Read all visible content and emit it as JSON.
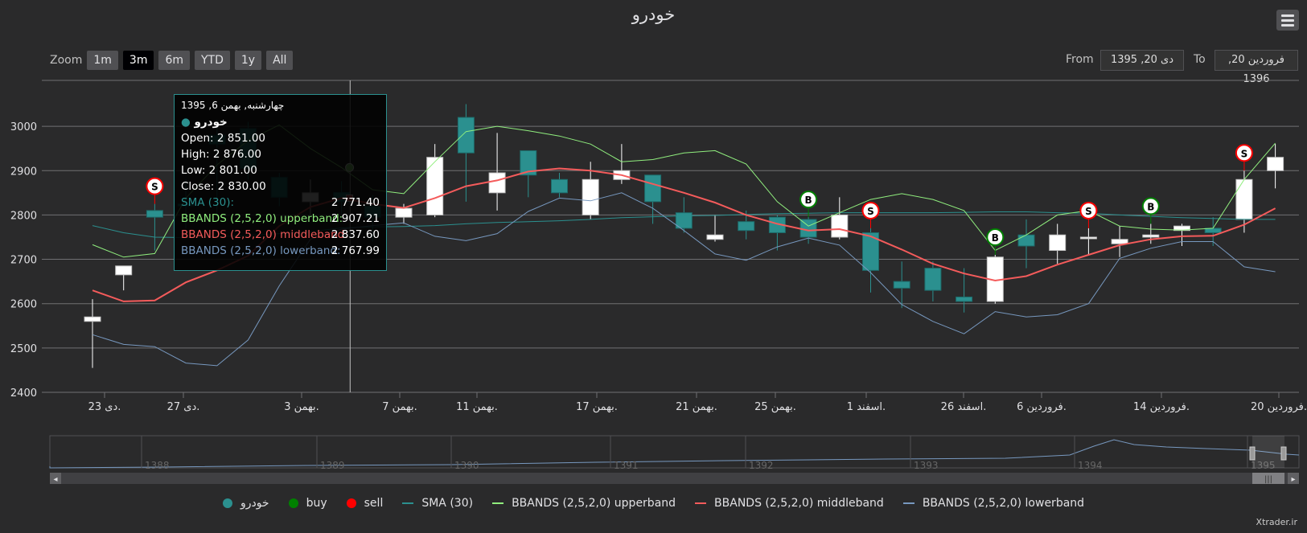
{
  "title": "خودرو",
  "credit": "Xtrader.ir",
  "zoom": {
    "label": "Zoom",
    "buttons": [
      "1m",
      "3m",
      "6m",
      "YTD",
      "1y",
      "All"
    ],
    "active": "3m"
  },
  "range": {
    "from_label": "From",
    "from_value": "دی 20, 1395",
    "to_label": "To",
    "to_value": "فروردین 20, 1396"
  },
  "colors": {
    "up": "#ffffff",
    "down": "#2b908f",
    "sma": "#2b908f",
    "upper": "#90ee7e",
    "middle": "#f45b5b",
    "lower": "#7798bf",
    "buy": "#008000",
    "sell": "#ff0000"
  },
  "icons": {
    "menu": "hamburger-menu-icon",
    "scroll_left": "arrow-left-icon",
    "scroll_right": "arrow-right-icon"
  },
  "chart_data": {
    "type": "candlestick",
    "title": "خودرو",
    "ylim": [
      2400,
      3100
    ],
    "yticks": [
      2400,
      2500,
      2600,
      2700,
      2800,
      2900,
      3000
    ],
    "grid": true,
    "legend_position": "bottom",
    "xtick_labels": [
      "دی 23.",
      "دی 27.",
      "بهمن 3.",
      "بهمن 7.",
      "بهمن 11.",
      "بهمن 17.",
      "بهمن 21.",
      "بهمن 25.",
      "اسفند 1.",
      "اسفند 26.",
      "فروردین 6.",
      "فروردین 14.",
      "فروردین 20."
    ],
    "candles": [
      {
        "open": 2560,
        "high": 2610,
        "low": 2455,
        "close": 2570
      },
      {
        "open": 2665,
        "high": 2685,
        "low": 2630,
        "close": 2685
      },
      {
        "open": 2810,
        "high": 2825,
        "low": 2720,
        "close": 2795
      },
      {
        "open": 2825,
        "high": 2880,
        "low": 2770,
        "close": 2820
      },
      {
        "open": 2980,
        "high": 3015,
        "low": 2800,
        "close": 2960
      },
      {
        "open": 2995,
        "high": 3010,
        "low": 2880,
        "close": 2905
      },
      {
        "open": 2885,
        "high": 2895,
        "low": 2820,
        "close": 2840
      },
      {
        "open": 2830,
        "high": 2880,
        "low": 2800,
        "close": 2850
      },
      {
        "open": 2851,
        "high": 2876,
        "low": 2801,
        "close": 2830
      },
      {
        "open": 2820,
        "high": 2845,
        "low": 2740,
        "close": 2795
      },
      {
        "open": 2795,
        "high": 2825,
        "low": 2780,
        "close": 2815
      },
      {
        "open": 2800,
        "high": 2960,
        "low": 2795,
        "close": 2930
      },
      {
        "open": 3020,
        "high": 3050,
        "low": 2830,
        "close": 2940
      },
      {
        "open": 2850,
        "high": 2985,
        "low": 2810,
        "close": 2895
      },
      {
        "open": 2945,
        "high": 2945,
        "low": 2840,
        "close": 2890
      },
      {
        "open": 2880,
        "high": 2895,
        "low": 2840,
        "close": 2850
      },
      {
        "open": 2800,
        "high": 2920,
        "low": 2790,
        "close": 2880
      },
      {
        "open": 2880,
        "high": 2960,
        "low": 2870,
        "close": 2900
      },
      {
        "open": 2890,
        "high": 2890,
        "low": 2780,
        "close": 2830
      },
      {
        "open": 2805,
        "high": 2840,
        "low": 2760,
        "close": 2770
      },
      {
        "open": 2745,
        "high": 2800,
        "low": 2740,
        "close": 2755
      },
      {
        "open": 2785,
        "high": 2810,
        "low": 2745,
        "close": 2765
      },
      {
        "open": 2795,
        "high": 2800,
        "low": 2720,
        "close": 2760
      },
      {
        "open": 2790,
        "high": 2795,
        "low": 2735,
        "close": 2750
      },
      {
        "open": 2750,
        "high": 2840,
        "low": 2745,
        "close": 2800
      },
      {
        "open": 2760,
        "high": 2770,
        "low": 2625,
        "close": 2675
      },
      {
        "open": 2650,
        "high": 2695,
        "low": 2590,
        "close": 2635
      },
      {
        "open": 2680,
        "high": 2695,
        "low": 2605,
        "close": 2630
      },
      {
        "open": 2615,
        "high": 2680,
        "low": 2580,
        "close": 2605
      },
      {
        "open": 2605,
        "high": 2710,
        "low": 2600,
        "close": 2705
      },
      {
        "open": 2755,
        "high": 2790,
        "low": 2680,
        "close": 2730
      },
      {
        "open": 2720,
        "high": 2780,
        "low": 2690,
        "close": 2755
      },
      {
        "open": 2750,
        "high": 2770,
        "low": 2710,
        "close": 2750
      },
      {
        "open": 2735,
        "high": 2775,
        "low": 2705,
        "close": 2745
      },
      {
        "open": 2750,
        "high": 2780,
        "low": 2735,
        "close": 2755
      },
      {
        "open": 2765,
        "high": 2780,
        "low": 2730,
        "close": 2775
      },
      {
        "open": 2770,
        "high": 2795,
        "low": 2730,
        "close": 2760
      },
      {
        "open": 2790,
        "high": 2900,
        "low": 2760,
        "close": 2880
      },
      {
        "open": 2900,
        "high": 2960,
        "low": 2860,
        "close": 2930
      }
    ],
    "series": [
      {
        "name": "SMA (30)",
        "values": [
          2776,
          2760,
          2750,
          2749,
          2751,
          2754,
          2758,
          2762,
          2771,
          2773,
          2774,
          2776,
          2780,
          2783,
          2785,
          2787,
          2790,
          2794,
          2796,
          2798,
          2799,
          2801,
          2803,
          2804,
          2805,
          2805,
          2805,
          2805,
          2806,
          2807,
          2807,
          2805,
          2804,
          2800,
          2797,
          2794,
          2792,
          2790,
          2790
        ]
      },
      {
        "name": "BBANDS (2,5,2,0) upperband",
        "values": [
          2733,
          2705,
          2713,
          2838,
          2913,
          2968,
          3003,
          2950,
          2907,
          2857,
          2848,
          2920,
          2988,
          3000,
          2990,
          2978,
          2960,
          2920,
          2925,
          2940,
          2945,
          2915,
          2830,
          2775,
          2805,
          2835,
          2848,
          2835,
          2810,
          2720,
          2755,
          2800,
          2810,
          2775,
          2768,
          2766,
          2770,
          2880,
          2962
        ]
      },
      {
        "name": "BBANDS (2,5,2,0) middleband",
        "values": [
          2630,
          2605,
          2607,
          2648,
          2675,
          2708,
          2775,
          2818,
          2838,
          2825,
          2816,
          2838,
          2865,
          2878,
          2898,
          2905,
          2900,
          2890,
          2870,
          2850,
          2828,
          2800,
          2780,
          2765,
          2768,
          2752,
          2722,
          2690,
          2668,
          2652,
          2662,
          2688,
          2710,
          2732,
          2745,
          2752,
          2753,
          2778,
          2815
        ]
      },
      {
        "name": "BBANDS (2,5,2,0) lowerband",
        "values": [
          2530,
          2508,
          2503,
          2466,
          2460,
          2518,
          2640,
          2745,
          2768,
          2776,
          2782,
          2752,
          2742,
          2758,
          2808,
          2838,
          2832,
          2850,
          2815,
          2765,
          2712,
          2698,
          2728,
          2748,
          2732,
          2670,
          2598,
          2560,
          2532,
          2582,
          2570,
          2575,
          2600,
          2702,
          2725,
          2740,
          2740,
          2683,
          2672
        ]
      },
      {
        "name": "buy",
        "markers": [
          {
            "index": 23,
            "label": "B"
          },
          {
            "index": 29,
            "label": "B"
          },
          {
            "index": 34,
            "label": "B"
          }
        ]
      },
      {
        "name": "sell",
        "markers": [
          {
            "index": 25,
            "label": "S"
          },
          {
            "index": 2,
            "label": "S"
          },
          {
            "index": 32,
            "label": "S"
          },
          {
            "index": 37,
            "label": "S"
          }
        ]
      }
    ],
    "navigator": {
      "year_labels": [
        "1388",
        "1389",
        "1390",
        "1391",
        "1392",
        "1393",
        "1394",
        "1395"
      ]
    },
    "tooltip": {
      "date": "چهارشنبه, بهمن 6, 1395",
      "series_name": "خودرو",
      "open": "Open: 2 851.00",
      "high": "High: 2 876.00",
      "low": "Low: 2 801.00",
      "close": "Close: 2 830.00",
      "sma_label": "SMA (30):",
      "sma_value": "2 771.40",
      "upper_label": "BBANDS (2,5,2,0) upperband:",
      "upper_value": "2 907.21",
      "middle_label": "BBANDS (2,5,2,0) middleband:",
      "middle_value": "2 837.60",
      "lower_label": "BBANDS (2,5,2,0) lowerband:",
      "lower_value": "2 767.99"
    }
  },
  "legend": [
    {
      "name": "خودرو",
      "kind": "dot",
      "color": "#2b908f"
    },
    {
      "name": "buy",
      "kind": "dot",
      "color": "#008000"
    },
    {
      "name": "sell",
      "kind": "dot",
      "color": "#ff0000"
    },
    {
      "name": "SMA (30)",
      "kind": "line",
      "color": "#2b908f"
    },
    {
      "name": "BBANDS (2,5,2,0) upperband",
      "kind": "line",
      "color": "#90ee7e"
    },
    {
      "name": "BBANDS (2,5,2,0) middleband",
      "kind": "line",
      "color": "#f45b5b"
    },
    {
      "name": "BBANDS (2,5,2,0) lowerband",
      "kind": "line",
      "color": "#7798bf"
    }
  ]
}
